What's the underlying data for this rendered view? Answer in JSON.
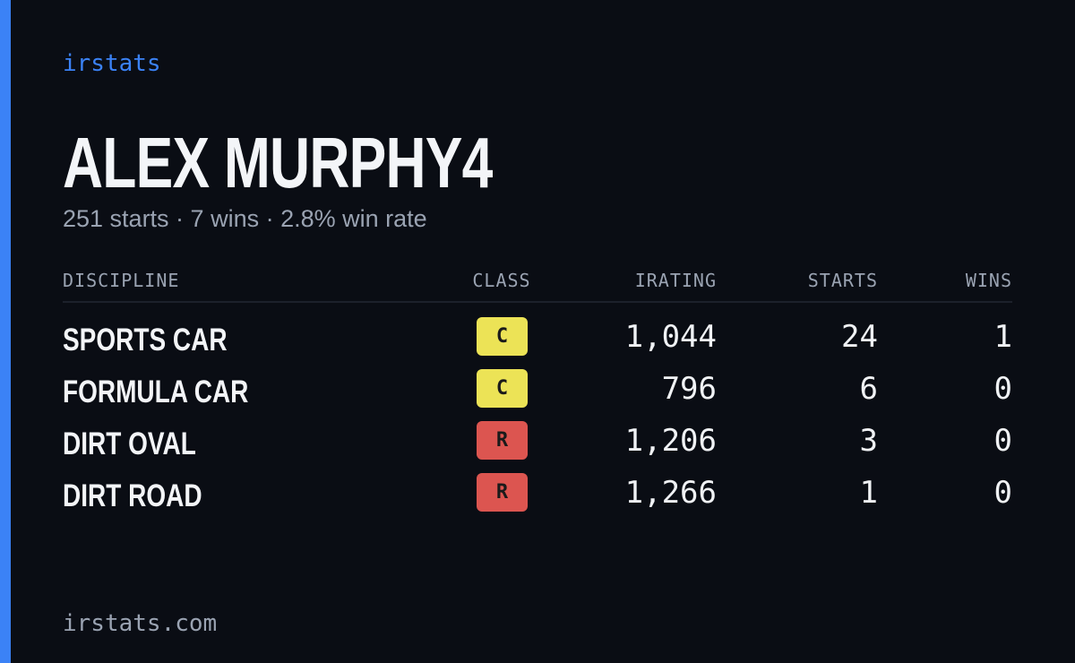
{
  "header": {
    "brand": "irstats",
    "title": "ALEX MURPHY4",
    "subtitle": "251 starts · 7 wins · 2.8% win rate"
  },
  "table": {
    "columns": [
      "DISCIPLINE",
      "CLASS",
      "IRATING",
      "STARTS",
      "WINS"
    ],
    "rows": [
      {
        "discipline": "SPORTS CAR",
        "class": "C",
        "class_color": "#ece356",
        "irating": "1,044",
        "starts": "24",
        "wins": "1"
      },
      {
        "discipline": "FORMULA CAR",
        "class": "C",
        "class_color": "#ece356",
        "irating": "796",
        "starts": "6",
        "wins": "0"
      },
      {
        "discipline": "DIRT OVAL",
        "class": "R",
        "class_color": "#dc5550",
        "irating": "1,206",
        "starts": "3",
        "wins": "0"
      },
      {
        "discipline": "DIRT ROAD",
        "class": "R",
        "class_color": "#dc5550",
        "irating": "1,266",
        "starts": "1",
        "wins": "0"
      }
    ]
  },
  "footer": {
    "url": "irstats.com"
  }
}
